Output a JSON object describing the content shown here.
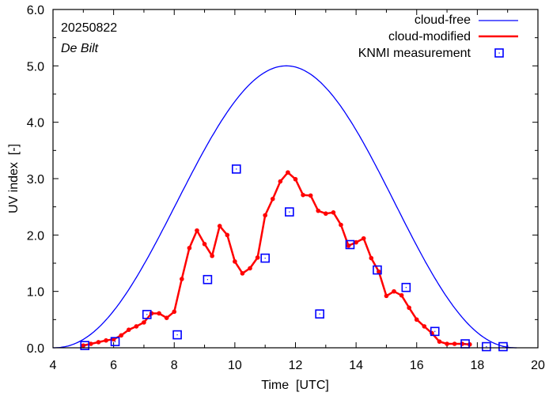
{
  "chart_data": {
    "type": "line",
    "annotations": {
      "date": "20250822",
      "location": "De Bilt"
    },
    "xlabel": "Time  [UTC]",
    "ylabel": "UV index  [-]",
    "xlim": [
      4,
      20
    ],
    "ylim": [
      0,
      6
    ],
    "xticks": [
      "4",
      "6",
      "8",
      "10",
      "12",
      "14",
      "16",
      "18",
      "20"
    ],
    "yticks": [
      "0.0",
      "1.0",
      "2.0",
      "3.0",
      "4.0",
      "5.0",
      "6.0"
    ],
    "legend": {
      "position": "top-right",
      "entries": [
        "cloud-free",
        "cloud-modified",
        "KNMI measurement"
      ]
    },
    "colors": {
      "cloud_free": "#0000ff",
      "cloud_modified": "#ff0000",
      "measurement": "#0000ff"
    },
    "series": [
      {
        "name": "cloud-free",
        "type": "line",
        "peak_x": 11.7,
        "peak_y": 5.0,
        "x_start": 4.0,
        "x_end": 19.3
      },
      {
        "name": "cloud-modified",
        "type": "line-markers",
        "x": [
          5.0,
          5.25,
          5.5,
          5.75,
          6.0,
          6.25,
          6.5,
          6.75,
          7.0,
          7.25,
          7.5,
          7.75,
          8.0,
          8.25,
          8.5,
          8.75,
          9.0,
          9.25,
          9.5,
          9.75,
          10.0,
          10.25,
          10.5,
          10.75,
          11.0,
          11.25,
          11.5,
          11.75,
          12.0,
          12.25,
          12.5,
          12.75,
          13.0,
          13.25,
          13.5,
          13.75,
          14.0,
          14.25,
          14.5,
          14.75,
          15.0,
          15.25,
          15.5,
          15.75,
          16.0,
          16.25,
          16.5,
          16.75,
          17.0,
          17.25,
          17.5,
          17.75
        ],
        "y": [
          0.04,
          0.07,
          0.1,
          0.13,
          0.15,
          0.22,
          0.32,
          0.38,
          0.45,
          0.61,
          0.61,
          0.53,
          0.64,
          1.22,
          1.77,
          2.08,
          1.84,
          1.63,
          2.16,
          2.0,
          1.53,
          1.32,
          1.41,
          1.6,
          2.35,
          2.64,
          2.95,
          3.11,
          2.99,
          2.71,
          2.7,
          2.43,
          2.38,
          2.4,
          2.18,
          1.81,
          1.87,
          1.94,
          1.59,
          1.35,
          0.92,
          1.0,
          0.93,
          0.71,
          0.5,
          0.38,
          0.26,
          0.11,
          0.07,
          0.07,
          0.07,
          0.06
        ]
      },
      {
        "name": "KNMI measurement",
        "type": "markers",
        "x": [
          5.05,
          6.05,
          7.1,
          8.1,
          9.1,
          10.05,
          11.0,
          11.8,
          12.8,
          13.8,
          14.7,
          15.65,
          16.6,
          17.6,
          18.3,
          18.85
        ],
        "y": [
          0.04,
          0.11,
          0.59,
          0.23,
          1.21,
          3.17,
          1.59,
          2.41,
          0.6,
          1.83,
          1.38,
          1.07,
          0.29,
          0.07,
          0.02,
          0.02
        ]
      }
    ]
  }
}
